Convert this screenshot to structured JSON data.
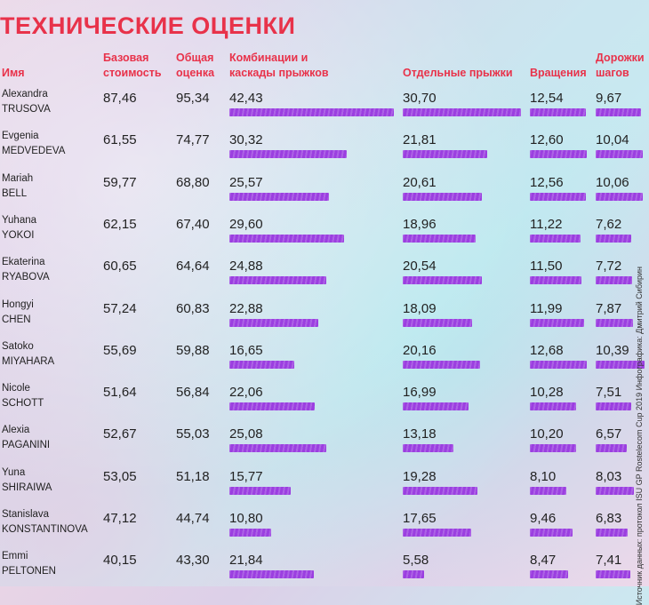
{
  "title": "ТЕХНИЧЕСКИЕ ОЦЕНКИ",
  "source": "Источник данных: протокол ISU GP Rostelecom Cup 2019 Инфографика: Дмитрий Сибирин",
  "headers": {
    "name": "Имя",
    "base": [
      "Базовая",
      "стоимость"
    ],
    "total": [
      "Общая",
      "оценка"
    ],
    "combo": [
      "Комбинации и",
      "каскады прыжков"
    ],
    "solo": "Отдельные прыжки",
    "spins": "Вращения",
    "steps": [
      "Дорожки",
      "шагов"
    ]
  },
  "colors": {
    "title": "#e8324a",
    "bar": "#9b3fe0"
  },
  "chart_data": {
    "type": "table",
    "columns": [
      "Имя",
      "Базовая стоимость",
      "Общая оценка",
      "Комбинации и каскады прыжков",
      "Отдельные прыжки",
      "Вращения",
      "Дорожки шагов"
    ],
    "rows": [
      {
        "first": "Alexandra",
        "last": "TRUSOVA",
        "base": "87,46",
        "total": "95,34",
        "combo": "42,43",
        "solo": "30,70",
        "spins": "12,54",
        "steps": "9,67"
      },
      {
        "first": "Evgenia",
        "last": "MEDVEDEVA",
        "base": "61,55",
        "total": "74,77",
        "combo": "30,32",
        "solo": "21,81",
        "spins": "12,60",
        "steps": "10,04"
      },
      {
        "first": "Mariah",
        "last": "BELL",
        "base": "59,77",
        "total": "68,80",
        "combo": "25,57",
        "solo": "20,61",
        "spins": "12,56",
        "steps": "10,06"
      },
      {
        "first": "Yuhana",
        "last": "YOKOI",
        "base": "62,15",
        "total": "67,40",
        "combo": "29,60",
        "solo": "18,96",
        "spins": "11,22",
        "steps": "7,62"
      },
      {
        "first": "Ekaterina",
        "last": "RYABOVA",
        "base": "60,65",
        "total": "64,64",
        "combo": "24,88",
        "solo": "20,54",
        "spins": "11,50",
        "steps": "7,72"
      },
      {
        "first": "Hongyi",
        "last": "CHEN",
        "base": "57,24",
        "total": "60,83",
        "combo": "22,88",
        "solo": "18,09",
        "spins": "11,99",
        "steps": "7,87"
      },
      {
        "first": "Satoko",
        "last": "MIYAHARA",
        "base": "55,69",
        "total": "59,88",
        "combo": "16,65",
        "solo": "20,16",
        "spins": "12,68",
        "steps": "10,39"
      },
      {
        "first": "Nicole",
        "last": "SCHOTT",
        "base": "51,64",
        "total": "56,84",
        "combo": "22,06",
        "solo": "16,99",
        "spins": "10,28",
        "steps": "7,51"
      },
      {
        "first": "Alexia",
        "last": "PAGANINI",
        "base": "52,67",
        "total": "55,03",
        "combo": "25,08",
        "solo": "13,18",
        "spins": "10,20",
        "steps": "6,57"
      },
      {
        "first": "Yuna",
        "last": "SHIRAIWA",
        "base": "53,05",
        "total": "51,18",
        "combo": "15,77",
        "solo": "19,28",
        "spins": "8,10",
        "steps": "8,03"
      },
      {
        "first": "Stanislava",
        "last": "KONSTANTINOVA",
        "base": "47,12",
        "total": "44,74",
        "combo": "10,80",
        "solo": "17,65",
        "spins": "9,46",
        "steps": "6,83"
      },
      {
        "first": "Emmi",
        "last": "PELTONEN",
        "base": "40,15",
        "total": "43,30",
        "combo": "21,84",
        "solo": "5,58",
        "spins": "8,47",
        "steps": "7,41"
      }
    ]
  }
}
